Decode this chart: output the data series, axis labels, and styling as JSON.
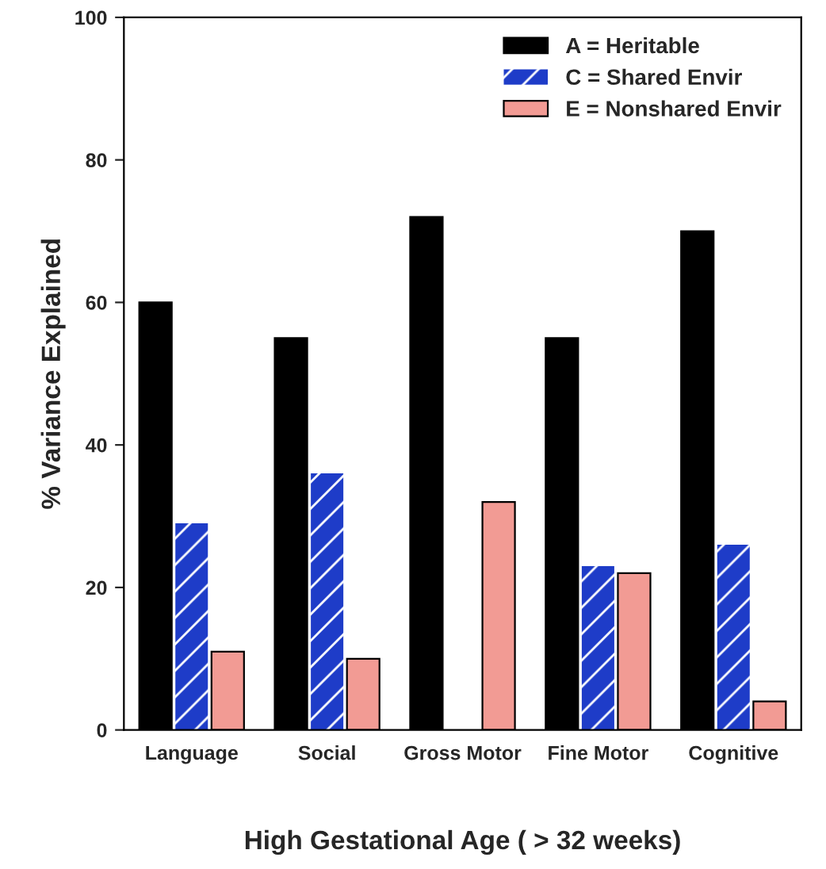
{
  "chart_data": {
    "type": "bar",
    "xlabel": "High Gestational Age ( > 32 weeks)",
    "ylabel": "% Variance Explained",
    "categories": [
      "Language",
      "Social",
      "Gross Motor",
      "Fine Motor",
      "Cognitive"
    ],
    "series": [
      {
        "name": "A = Heritable",
        "color": "#000000",
        "values": [
          60,
          55,
          72,
          55,
          70
        ]
      },
      {
        "name": "C = Shared Envir",
        "color": "#1e3cc8",
        "values": [
          29,
          36,
          null,
          23,
          26
        ]
      },
      {
        "name": "E = Nonshared Envir",
        "color": "#f29b94",
        "values": [
          11,
          10,
          32,
          22,
          4
        ]
      }
    ],
    "ylim": [
      0,
      100
    ],
    "yticks": [
      0,
      20,
      40,
      60,
      80,
      100
    ],
    "legend": "top right",
    "grid": false
  }
}
